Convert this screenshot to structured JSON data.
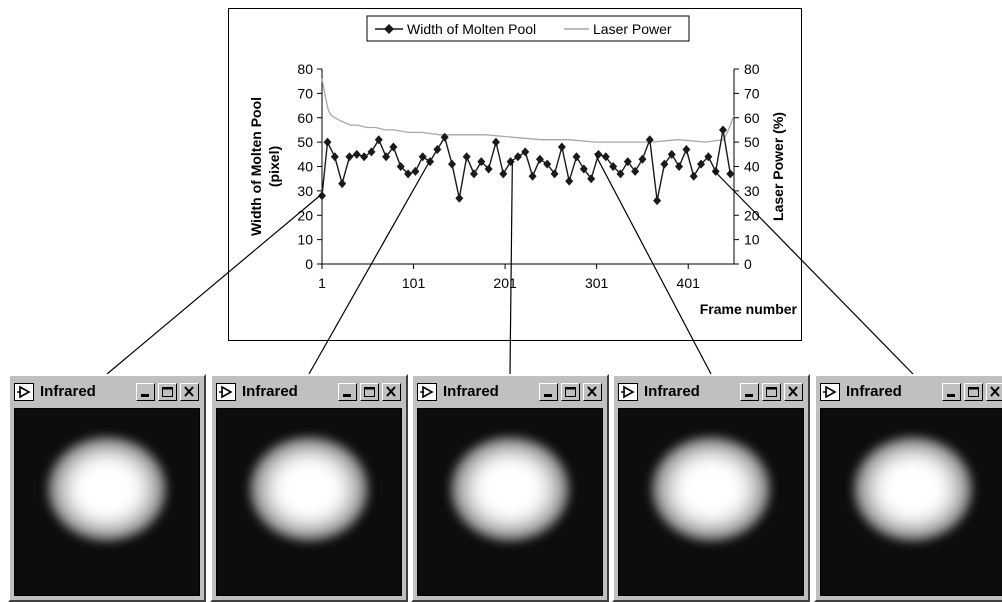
{
  "chart_data": {
    "type": "line",
    "title": "",
    "xlabel": "Frame number",
    "ylabel": "Width of Molten Pool (pixel)",
    "ylabel_lines": [
      "Width of Molten Pool",
      "(pixel)"
    ],
    "y2label": "Laser Power (%)",
    "xlim": [
      1,
      451
    ],
    "ylim": [
      0,
      80
    ],
    "y2lim": [
      0,
      80
    ],
    "x_ticks": [
      "1",
      "101",
      "201",
      "301",
      "401"
    ],
    "y_ticks": [
      "0",
      "10",
      "20",
      "30",
      "40",
      "50",
      "60",
      "70",
      "80"
    ],
    "y2_ticks": [
      "0",
      "10",
      "20",
      "30",
      "40",
      "50",
      "60",
      "70",
      "80"
    ],
    "grid": false,
    "legend_position": "top",
    "series": [
      {
        "name": "Width of Molten Pool",
        "color": "#1a1a1a",
        "marker": "diamond",
        "x": [
          1,
          7,
          15,
          23,
          31,
          39,
          47,
          55,
          63,
          71,
          79,
          87,
          95,
          103,
          111,
          119,
          127,
          135,
          143,
          151,
          159,
          167,
          175,
          183,
          191,
          199,
          207,
          215,
          223,
          231,
          239,
          247,
          255,
          263,
          271,
          279,
          287,
          295,
          303,
          311,
          319,
          327,
          335,
          343,
          351,
          359,
          367,
          375,
          383,
          391,
          399,
          407,
          415,
          423,
          431,
          439,
          447
        ],
        "y": [
          28,
          50,
          44,
          33,
          44,
          45,
          44,
          46,
          51,
          44,
          48,
          40,
          37,
          38,
          44,
          42,
          47,
          52,
          41,
          27,
          44,
          37,
          42,
          39,
          50,
          37,
          42,
          44,
          46,
          36,
          43,
          41,
          37,
          48,
          34,
          44,
          39,
          35,
          45,
          44,
          40,
          37,
          42,
          38,
          43,
          51,
          26,
          41,
          45,
          40,
          47,
          36,
          41,
          44,
          38,
          55,
          37
        ]
      },
      {
        "name": "Laser Power",
        "color": "#a8a8a8",
        "marker": "none",
        "x": [
          1,
          3,
          5,
          8,
          11,
          15,
          20,
          26,
          32,
          40,
          50,
          60,
          70,
          80,
          95,
          110,
          130,
          150,
          180,
          210,
          240,
          270,
          300,
          330,
          360,
          390,
          420,
          440,
          445,
          448,
          451
        ],
        "y": [
          76,
          72,
          68,
          63,
          61,
          60,
          59,
          58,
          57,
          57,
          56,
          56,
          55,
          55,
          54,
          54,
          53,
          53,
          53,
          52,
          51,
          51,
          50,
          50,
          50,
          51,
          50,
          51,
          55,
          58,
          61
        ]
      }
    ]
  },
  "windows": [
    {
      "title": "Infrared",
      "frame": 1
    },
    {
      "title": "Infrared",
      "frame": 120
    },
    {
      "title": "Infrared",
      "frame": 210
    },
    {
      "title": "Infrared",
      "frame": 300
    },
    {
      "title": "Infrared",
      "frame": 430
    }
  ]
}
